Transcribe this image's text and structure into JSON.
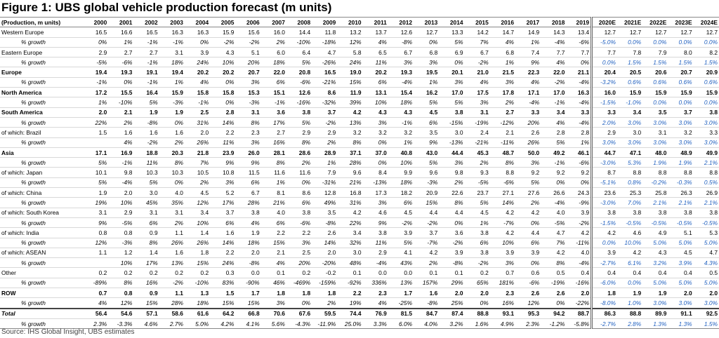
{
  "title": "Figure 1: UBS global vehicle production forecast (m units)",
  "table": {
    "header": [
      "(Production, m units)",
      "2000",
      "2001",
      "2002",
      "2003",
      "2004",
      "2005",
      "2006",
      "2007",
      "2008",
      "2009",
      "2010",
      "2011",
      "2012",
      "2013",
      "2014",
      "2015",
      "2016",
      "2017",
      "2018",
      "2019",
      "2020E",
      "2021E",
      "2022E",
      "2023E",
      "2024E"
    ],
    "rows": [
      {
        "kind": "plain",
        "label": "Western Europe",
        "values": [
          "16.5",
          "16.6",
          "16.5",
          "16.3",
          "16.3",
          "15.9",
          "15.6",
          "16.0",
          "14.4",
          "11.8",
          "13.2",
          "13.7",
          "12.6",
          "12.7",
          "13.3",
          "14.2",
          "14.7",
          "14.9",
          "14.3",
          "13.4",
          "12.7",
          "12.7",
          "12.7",
          "12.7",
          "12.7"
        ]
      },
      {
        "kind": "growth",
        "label": "% growth",
        "values": [
          "0%",
          "1%",
          "-1%",
          "-1%",
          "0%",
          "-2%",
          "-2%",
          "2%",
          "-10%",
          "-18%",
          "12%",
          "4%",
          "-8%",
          "0%",
          "5%",
          "7%",
          "4%",
          "1%",
          "-4%",
          "-6%",
          "-5.0%",
          "0.0%",
          "0.0%",
          "0.0%",
          "0.0%"
        ]
      },
      {
        "kind": "plain",
        "label": "Eastern Europe",
        "values": [
          "2.9",
          "2.7",
          "2.7",
          "3.1",
          "3.9",
          "4.3",
          "5.1",
          "6.0",
          "6.4",
          "4.7",
          "5.8",
          "6.5",
          "6.7",
          "6.8",
          "6.9",
          "6.7",
          "6.8",
          "7.4",
          "7.7",
          "7.7",
          "7.7",
          "7.8",
          "7.9",
          "8.0",
          "8.2"
        ]
      },
      {
        "kind": "growth",
        "label": "% growth",
        "values": [
          "-5%",
          "-6%",
          "-1%",
          "18%",
          "24%",
          "10%",
          "20%",
          "18%",
          "5%",
          "-26%",
          "24%",
          "11%",
          "3%",
          "3%",
          "0%",
          "-2%",
          "1%",
          "9%",
          "4%",
          "0%",
          "0.0%",
          "1.5%",
          "1.5%",
          "1.5%",
          "1.5%"
        ]
      },
      {
        "kind": "bold",
        "label": "Europe",
        "values": [
          "19.4",
          "19.3",
          "19.1",
          "19.4",
          "20.2",
          "20.2",
          "20.7",
          "22.0",
          "20.8",
          "16.5",
          "19.0",
          "20.2",
          "19.3",
          "19.5",
          "20.1",
          "21.0",
          "21.5",
          "22.3",
          "22.0",
          "21.1",
          "20.4",
          "20.5",
          "20.6",
          "20.7",
          "20.9"
        ]
      },
      {
        "kind": "growth",
        "label": "% growth",
        "values": [
          "-1%",
          "0%",
          "-1%",
          "1%",
          "4%",
          "0%",
          "3%",
          "6%",
          "-6%",
          "-21%",
          "15%",
          "6%",
          "-4%",
          "1%",
          "3%",
          "4%",
          "3%",
          "4%",
          "-2%",
          "-4%",
          "-3.2%",
          "0.6%",
          "0.6%",
          "0.6%",
          "0.6%"
        ]
      },
      {
        "kind": "bold",
        "label": "North America",
        "values": [
          "17.2",
          "15.5",
          "16.4",
          "15.9",
          "15.8",
          "15.8",
          "15.3",
          "15.1",
          "12.6",
          "8.6",
          "11.9",
          "13.1",
          "15.4",
          "16.2",
          "17.0",
          "17.5",
          "17.8",
          "17.1",
          "17.0",
          "16.3",
          "16.0",
          "15.9",
          "15.9",
          "15.9",
          "15.9"
        ]
      },
      {
        "kind": "growth",
        "label": "% growth",
        "values": [
          "1%",
          "-10%",
          "5%",
          "-3%",
          "-1%",
          "0%",
          "-3%",
          "-1%",
          "-16%",
          "-32%",
          "39%",
          "10%",
          "18%",
          "5%",
          "5%",
          "3%",
          "2%",
          "-4%",
          "-1%",
          "-4%",
          "-1.5%",
          "-1.0%",
          "0.0%",
          "0.0%",
          "0.0%"
        ]
      },
      {
        "kind": "bold",
        "label": "South America",
        "values": [
          "2.0",
          "2.1",
          "1.9",
          "1.9",
          "2.5",
          "2.8",
          "3.1",
          "3.6",
          "3.8",
          "3.7",
          "4.2",
          "4.3",
          "4.3",
          "4.5",
          "3.8",
          "3.1",
          "2.7",
          "3.3",
          "3.4",
          "3.3",
          "3.3",
          "3.4",
          "3.5",
          "3.7",
          "3.8"
        ]
      },
      {
        "kind": "growth",
        "label": "% growth",
        "values": [
          "22%",
          "2%",
          "-8%",
          "0%",
          "31%",
          "14%",
          "8%",
          "17%",
          "5%",
          "-2%",
          "13%",
          "3%",
          "-1%",
          "6%",
          "-15%",
          "-19%",
          "-12%",
          "20%",
          "4%",
          "-4%",
          "2.0%",
          "3.0%",
          "3.0%",
          "3.0%",
          "3.0%"
        ]
      },
      {
        "kind": "plain",
        "label": "of which: Brazil",
        "values": [
          "1.5",
          "1.6",
          "1.6",
          "1.6",
          "2.0",
          "2.2",
          "2.3",
          "2.7",
          "2.9",
          "2.9",
          "3.2",
          "3.2",
          "3.2",
          "3.5",
          "3.0",
          "2.4",
          "2.1",
          "2.6",
          "2.8",
          "2.8",
          "2.9",
          "3.0",
          "3.1",
          "3.2",
          "3.3"
        ]
      },
      {
        "kind": "growth",
        "label": "% growth",
        "values": [
          null,
          "4%",
          "-2%",
          "2%",
          "26%",
          "11%",
          "3%",
          "16%",
          "8%",
          "2%",
          "8%",
          "0%",
          "1%",
          "9%",
          "-13%",
          "-21%",
          "-11%",
          "26%",
          "5%",
          "1%",
          "3.0%",
          "3.0%",
          "3.0%",
          "3.0%",
          "3.0%"
        ]
      },
      {
        "kind": "bold",
        "label": "Asia",
        "values": [
          "17.1",
          "16.9",
          "18.8",
          "20.3",
          "21.8",
          "23.9",
          "26.0",
          "28.1",
          "28.6",
          "28.9",
          "37.1",
          "37.0",
          "40.8",
          "43.0",
          "44.4",
          "45.3",
          "48.7",
          "50.0",
          "49.2",
          "46.1",
          "44.7",
          "47.1",
          "48.0",
          "48.9",
          "49.9"
        ]
      },
      {
        "kind": "growth",
        "label": "% growth",
        "values": [
          "5%",
          "-1%",
          "11%",
          "8%",
          "7%",
          "9%",
          "9%",
          "8%",
          "2%",
          "1%",
          "28%",
          "0%",
          "10%",
          "5%",
          "3%",
          "2%",
          "8%",
          "3%",
          "-1%",
          "-6%",
          "-3.0%",
          "5.3%",
          "1.9%",
          "1.9%",
          "2.1%"
        ]
      },
      {
        "kind": "plain",
        "label": "of which: Japan",
        "values": [
          "10.1",
          "9.8",
          "10.3",
          "10.3",
          "10.5",
          "10.8",
          "11.5",
          "11.6",
          "11.6",
          "7.9",
          "9.6",
          "8.4",
          "9.9",
          "9.6",
          "9.8",
          "9.3",
          "8.8",
          "9.2",
          "9.2",
          "9.2",
          "8.7",
          "8.8",
          "8.8",
          "8.8",
          "8.8"
        ]
      },
      {
        "kind": "growth",
        "label": "% growth",
        "values": [
          "5%",
          "-4%",
          "5%",
          "0%",
          "2%",
          "3%",
          "6%",
          "1%",
          "0%",
          "-31%",
          "21%",
          "-13%",
          "18%",
          "-3%",
          "2%",
          "-5%",
          "-6%",
          "5%",
          "0%",
          "0%",
          "-5.1%",
          "0.8%",
          "-0.2%",
          "-0.3%",
          "0.5%"
        ]
      },
      {
        "kind": "plain",
        "label": "of which: China",
        "values": [
          "1.9",
          "2.0",
          "3.0",
          "4.0",
          "4.5",
          "5.2",
          "6.7",
          "8.1",
          "8.6",
          "12.8",
          "16.8",
          "17.3",
          "18.2",
          "20.9",
          "22.6",
          "23.7",
          "27.1",
          "27.6",
          "26.6",
          "24.3",
          "23.6",
          "25.3",
          "25.8",
          "26.3",
          "26.9"
        ]
      },
      {
        "kind": "growth",
        "label": "% growth",
        "values": [
          "19%",
          "10%",
          "45%",
          "35%",
          "12%",
          "17%",
          "28%",
          "21%",
          "6%",
          "49%",
          "31%",
          "3%",
          "6%",
          "15%",
          "8%",
          "5%",
          "14%",
          "2%",
          "-4%",
          "-9%",
          "-3.0%",
          "7.0%",
          "2.1%",
          "2.1%",
          "2.1%"
        ]
      },
      {
        "kind": "plain",
        "label": "of which: South Korea",
        "values": [
          "3.1",
          "2.9",
          "3.1",
          "3.1",
          "3.4",
          "3.7",
          "3.8",
          "4.0",
          "3.8",
          "3.5",
          "4.2",
          "4.6",
          "4.5",
          "4.4",
          "4.4",
          "4.5",
          "4.2",
          "4.2",
          "4.0",
          "3.9",
          "3.8",
          "3.8",
          "3.8",
          "3.8",
          "3.8"
        ]
      },
      {
        "kind": "growth",
        "label": "% growth",
        "values": [
          "9%",
          "-5%",
          "6%",
          "2%",
          "10%",
          "6%",
          "4%",
          "6%",
          "-6%",
          "-8%",
          "22%",
          "9%",
          "-2%",
          "-2%",
          "0%",
          "1%",
          "-7%",
          "0%",
          "-5%",
          "-2%",
          "-1.5%",
          "-0.5%",
          "-0.5%",
          "-0.5%",
          "-0.5%"
        ]
      },
      {
        "kind": "plain",
        "label": "of which: India",
        "values": [
          "0.8",
          "0.8",
          "0.9",
          "1.1",
          "1.4",
          "1.6",
          "1.9",
          "2.2",
          "2.2",
          "2.6",
          "3.4",
          "3.8",
          "3.9",
          "3.7",
          "3.6",
          "3.8",
          "4.2",
          "4.4",
          "4.7",
          "4.2",
          "4.2",
          "4.6",
          "4.9",
          "5.1",
          "5.3"
        ]
      },
      {
        "kind": "growth",
        "label": "% growth",
        "values": [
          "12%",
          "-3%",
          "8%",
          "26%",
          "26%",
          "14%",
          "18%",
          "15%",
          "3%",
          "14%",
          "32%",
          "11%",
          "5%",
          "-7%",
          "-2%",
          "6%",
          "10%",
          "6%",
          "7%",
          "-11%",
          "0.0%",
          "10.0%",
          "5.0%",
          "5.0%",
          "5.0%"
        ]
      },
      {
        "kind": "plain",
        "label": "of which: ASEAN",
        "values": [
          "1.1",
          "1.2",
          "1.4",
          "1.6",
          "1.8",
          "2.2",
          "2.0",
          "2.1",
          "2.5",
          "2.0",
          "3.0",
          "2.9",
          "4.1",
          "4.2",
          "3.9",
          "3.8",
          "3.9",
          "3.9",
          "4.2",
          "4.0",
          "3.9",
          "4.2",
          "4.3",
          "4.5",
          "4.7"
        ]
      },
      {
        "kind": "growth",
        "label": "% growth",
        "values": [
          null,
          "10%",
          "17%",
          "13%",
          "15%",
          "24%",
          "-8%",
          "4%",
          "20%",
          "-20%",
          "48%",
          "-4%",
          "43%",
          "2%",
          "-8%",
          "-2%",
          "3%",
          "0%",
          "8%",
          "-4%",
          "-2.7%",
          "6.1%",
          "3.2%",
          "3.9%",
          "4.3%"
        ]
      },
      {
        "kind": "plain",
        "label": "Other",
        "values": [
          "0.2",
          "0.2",
          "0.2",
          "0.2",
          "0.2",
          "0.3",
          "0.0",
          "0.1",
          "0.2",
          "-0.2",
          "0.1",
          "0.0",
          "0.0",
          "0.1",
          "0.1",
          "0.2",
          "0.7",
          "0.6",
          "0.5",
          "0.4",
          "0.4",
          "0.4",
          "0.4",
          "0.4",
          "0.5"
        ]
      },
      {
        "kind": "growth",
        "label": "% growth",
        "values": [
          "-89%",
          "8%",
          "16%",
          "-2%",
          "-10%",
          "83%",
          "-90%",
          "46%",
          "-469%",
          "-159%",
          "-92%",
          "336%",
          "13%",
          "157%",
          "29%",
          "65%",
          "181%",
          "-6%",
          "-19%",
          "-16%",
          "-6.0%",
          "0.0%",
          "5.0%",
          "5.0%",
          "5.0%"
        ]
      },
      {
        "kind": "bold",
        "label": "ROW",
        "values": [
          "0.7",
          "0.8",
          "0.9",
          "1.1",
          "1.3",
          "1.5",
          "1.7",
          "1.8",
          "1.8",
          "1.8",
          "2.2",
          "2.3",
          "1.7",
          "1.6",
          "2.0",
          "2.0",
          "2.3",
          "2.6",
          "2.6",
          "2.0",
          "1.8",
          "1.9",
          "1.9",
          "2.0",
          "2.0"
        ]
      },
      {
        "kind": "growth",
        "label": "% growth",
        "values": [
          "4%",
          "12%",
          "15%",
          "28%",
          "18%",
          "15%",
          "15%",
          "3%",
          "0%",
          "2%",
          "19%",
          "4%",
          "-25%",
          "-8%",
          "25%",
          "0%",
          "16%",
          "12%",
          "0%",
          "-22%",
          "-8.0%",
          "1.0%",
          "3.0%",
          "3.0%",
          "3.0%"
        ]
      },
      {
        "kind": "total",
        "label": "Total",
        "values": [
          "56.4",
          "54.6",
          "57.1",
          "58.6",
          "61.6",
          "64.2",
          "66.8",
          "70.6",
          "67.6",
          "59.5",
          "74.4",
          "76.9",
          "81.5",
          "84.7",
          "87.4",
          "88.8",
          "93.1",
          "95.3",
          "94.2",
          "88.7",
          "86.3",
          "88.8",
          "89.9",
          "91.1",
          "92.5"
        ]
      },
      {
        "kind": "growth",
        "label": "% growth",
        "values": [
          "2.3%",
          "-3.3%",
          "4.6%",
          "2.7%",
          "5.0%",
          "4.2%",
          "4.1%",
          "5.6%",
          "-4.3%",
          "-11.9%",
          "25.0%",
          "3.3%",
          "6.0%",
          "4.0%",
          "3.2%",
          "1.6%",
          "4.9%",
          "2.3%",
          "-1.2%",
          "-5.8%",
          "-2.7%",
          "2.8%",
          "1.3%",
          "1.3%",
          "1.5%"
        ]
      }
    ]
  },
  "source": "Source: IHS Global Insight, UBS estimates"
}
